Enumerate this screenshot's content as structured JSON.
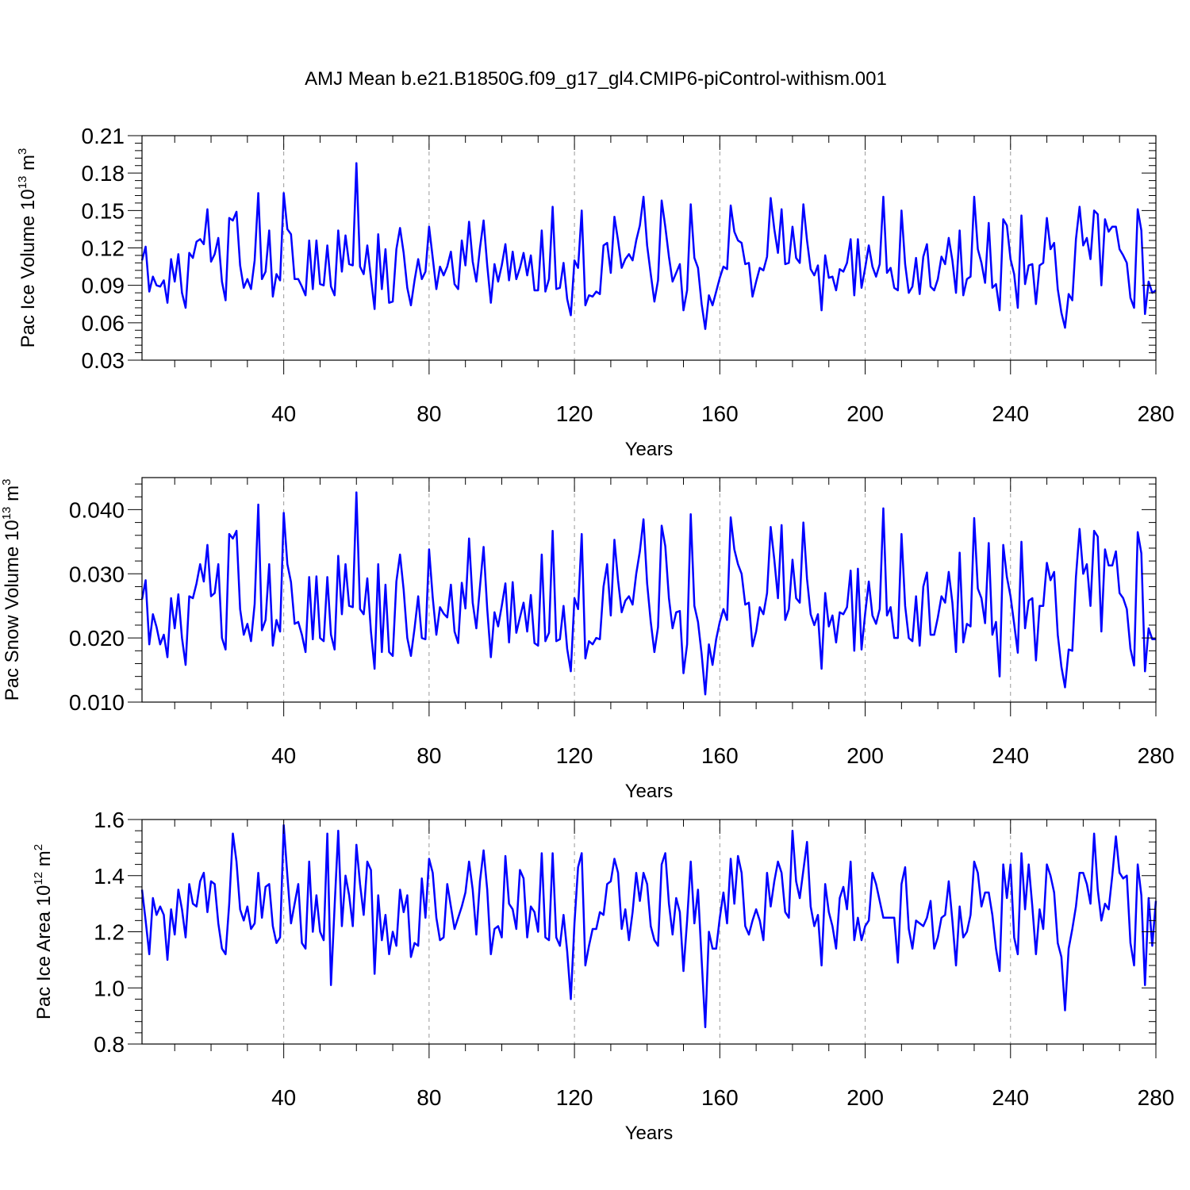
{
  "figure": {
    "title": "AMJ Mean b.e21.B1850G.f09_g17_gl4.CMIP6-piControl-withism.001",
    "line_color": "#0000ff",
    "grid_color": "#999999"
  },
  "chart_data": [
    {
      "type": "line",
      "title": "AMJ Mean b.e21.B1850G.f09_g17_gl4.CMIP6-piControl-withism.001",
      "xlabel": "Years",
      "ylabel": {
        "prefix": "Pac Ice Volume 10",
        "sup1": "13",
        "middle": " m",
        "sup2": "3"
      },
      "xlim": [
        1,
        280
      ],
      "ylim": [
        0.03,
        0.21
      ],
      "xticks": [
        40,
        80,
        120,
        160,
        200,
        240,
        280
      ],
      "xtick_labels": [
        "40",
        "80",
        "120",
        "160",
        "200",
        "240",
        "280"
      ],
      "yticks": [
        0.03,
        0.06,
        0.09,
        0.12,
        0.15,
        0.18,
        0.21
      ],
      "ytick_labels": [
        "0.03",
        "0.06",
        "0.09",
        "0.12",
        "0.15",
        "0.18",
        "0.21"
      ],
      "grid": "vertical dashed at major x ticks",
      "x_start": 1,
      "values": [
        0.11,
        0.121,
        0.085,
        0.097,
        0.09,
        0.089,
        0.094,
        0.076,
        0.111,
        0.093,
        0.115,
        0.084,
        0.072,
        0.116,
        0.112,
        0.125,
        0.127,
        0.123,
        0.151,
        0.109,
        0.115,
        0.128,
        0.093,
        0.078,
        0.144,
        0.142,
        0.149,
        0.106,
        0.088,
        0.095,
        0.087,
        0.11,
        0.164,
        0.095,
        0.101,
        0.134,
        0.081,
        0.099,
        0.094,
        0.164,
        0.135,
        0.131,
        0.095,
        0.095,
        0.089,
        0.082,
        0.126,
        0.087,
        0.126,
        0.091,
        0.09,
        0.122,
        0.089,
        0.082,
        0.134,
        0.101,
        0.13,
        0.107,
        0.106,
        0.188,
        0.105,
        0.099,
        0.122,
        0.096,
        0.071,
        0.131,
        0.087,
        0.119,
        0.076,
        0.077,
        0.119,
        0.136,
        0.116,
        0.088,
        0.074,
        0.094,
        0.111,
        0.095,
        0.101,
        0.137,
        0.112,
        0.087,
        0.105,
        0.098,
        0.105,
        0.117,
        0.091,
        0.087,
        0.126,
        0.106,
        0.141,
        0.109,
        0.093,
        0.12,
        0.142,
        0.106,
        0.076,
        0.107,
        0.093,
        0.106,
        0.123,
        0.094,
        0.117,
        0.095,
        0.104,
        0.116,
        0.098,
        0.114,
        0.086,
        0.086,
        0.134,
        0.085,
        0.095,
        0.153,
        0.087,
        0.088,
        0.108,
        0.079,
        0.066,
        0.11,
        0.104,
        0.15,
        0.074,
        0.082,
        0.081,
        0.085,
        0.083,
        0.122,
        0.124,
        0.1,
        0.145,
        0.126,
        0.104,
        0.111,
        0.115,
        0.11,
        0.126,
        0.138,
        0.161,
        0.122,
        0.099,
        0.077,
        0.094,
        0.158,
        0.137,
        0.113,
        0.093,
        0.1,
        0.107,
        0.07,
        0.086,
        0.155,
        0.112,
        0.104,
        0.075,
        0.055,
        0.082,
        0.074,
        0.085,
        0.096,
        0.105,
        0.103,
        0.154,
        0.133,
        0.126,
        0.124,
        0.107,
        0.108,
        0.081,
        0.093,
        0.104,
        0.102,
        0.113,
        0.16,
        0.135,
        0.116,
        0.151,
        0.107,
        0.108,
        0.137,
        0.112,
        0.108,
        0.155,
        0.126,
        0.103,
        0.098,
        0.106,
        0.07,
        0.114,
        0.096,
        0.097,
        0.086,
        0.103,
        0.101,
        0.108,
        0.127,
        0.082,
        0.127,
        0.088,
        0.104,
        0.122,
        0.105,
        0.097,
        0.107,
        0.161,
        0.1,
        0.104,
        0.088,
        0.086,
        0.15,
        0.107,
        0.084,
        0.089,
        0.112,
        0.083,
        0.113,
        0.123,
        0.089,
        0.086,
        0.095,
        0.113,
        0.107,
        0.128,
        0.11,
        0.084,
        0.134,
        0.082,
        0.095,
        0.097,
        0.161,
        0.119,
        0.108,
        0.092,
        0.14,
        0.088,
        0.091,
        0.07,
        0.143,
        0.138,
        0.111,
        0.099,
        0.072,
        0.146,
        0.091,
        0.106,
        0.107,
        0.075,
        0.106,
        0.108,
        0.144,
        0.119,
        0.124,
        0.087,
        0.068,
        0.056,
        0.083,
        0.078,
        0.127,
        0.153,
        0.122,
        0.128,
        0.111,
        0.15,
        0.147,
        0.09,
        0.143,
        0.133,
        0.137,
        0.137,
        0.119,
        0.114,
        0.108,
        0.08,
        0.072,
        0.151,
        0.134,
        0.067,
        0.093,
        0.084,
        0.086
      ]
    },
    {
      "type": "line",
      "xlabel": "Years",
      "ylabel": {
        "prefix": "Pac Snow Volume 10",
        "sup1": "13",
        "middle": " m",
        "sup2": "3"
      },
      "xlim": [
        1,
        280
      ],
      "ylim": [
        0.01,
        0.045
      ],
      "xticks": [
        40,
        80,
        120,
        160,
        200,
        240,
        280
      ],
      "xtick_labels": [
        "40",
        "80",
        "120",
        "160",
        "200",
        "240",
        "280"
      ],
      "yticks": [
        0.01,
        0.02,
        0.03,
        0.04
      ],
      "ytick_labels": [
        "0.010",
        "0.020",
        "0.030",
        "0.040"
      ],
      "grid": "vertical dashed at major x ticks",
      "x_start": 1,
      "values": [
        0.026,
        0.029,
        0.019,
        0.0237,
        0.0217,
        0.019,
        0.0205,
        0.017,
        0.0262,
        0.0215,
        0.0268,
        0.02,
        0.0158,
        0.0265,
        0.0262,
        0.0285,
        0.0315,
        0.0288,
        0.0345,
        0.0265,
        0.027,
        0.0315,
        0.02,
        0.0182,
        0.0362,
        0.0355,
        0.0367,
        0.0245,
        0.0205,
        0.0222,
        0.0195,
        0.0253,
        0.0408,
        0.0212,
        0.0228,
        0.0315,
        0.0188,
        0.0228,
        0.021,
        0.0395,
        0.0315,
        0.0287,
        0.0222,
        0.0225,
        0.0205,
        0.0178,
        0.0295,
        0.0198,
        0.0296,
        0.02,
        0.0195,
        0.0295,
        0.0205,
        0.0182,
        0.0328,
        0.0237,
        0.0315,
        0.025,
        0.0248,
        0.0427,
        0.0245,
        0.0237,
        0.0293,
        0.021,
        0.0152,
        0.0315,
        0.0178,
        0.0283,
        0.0178,
        0.0172,
        0.0288,
        0.033,
        0.0275,
        0.02,
        0.0172,
        0.0215,
        0.0265,
        0.02,
        0.0198,
        0.0338,
        0.0263,
        0.0205,
        0.0248,
        0.0238,
        0.0232,
        0.0283,
        0.021,
        0.0192,
        0.0286,
        0.0246,
        0.0355,
        0.0255,
        0.0215,
        0.028,
        0.0342,
        0.0245,
        0.017,
        0.024,
        0.0218,
        0.025,
        0.0285,
        0.0193,
        0.0287,
        0.0208,
        0.0232,
        0.0255,
        0.021,
        0.0267,
        0.0192,
        0.0188,
        0.033,
        0.0195,
        0.0208,
        0.0367,
        0.0195,
        0.0198,
        0.025,
        0.0183,
        0.0148,
        0.0262,
        0.0245,
        0.0362,
        0.0168,
        0.0195,
        0.019,
        0.02,
        0.0198,
        0.028,
        0.0315,
        0.0235,
        0.0353,
        0.029,
        0.024,
        0.0258,
        0.0265,
        0.0252,
        0.03,
        0.0335,
        0.0385,
        0.0285,
        0.0225,
        0.0178,
        0.0217,
        0.0375,
        0.0343,
        0.0262,
        0.0215,
        0.024,
        0.0242,
        0.0145,
        0.019,
        0.0393,
        0.025,
        0.0225,
        0.0175,
        0.0112,
        0.019,
        0.0158,
        0.0198,
        0.0225,
        0.0245,
        0.0228,
        0.0388,
        0.0338,
        0.0315,
        0.03,
        0.0252,
        0.0255,
        0.0187,
        0.021,
        0.0248,
        0.0237,
        0.027,
        0.0373,
        0.0322,
        0.0262,
        0.0376,
        0.0228,
        0.0245,
        0.0322,
        0.0262,
        0.0255,
        0.038,
        0.0292,
        0.0237,
        0.022,
        0.0237,
        0.0152,
        0.027,
        0.0218,
        0.0235,
        0.0193,
        0.024,
        0.0237,
        0.0248,
        0.0305,
        0.018,
        0.0308,
        0.0182,
        0.0238,
        0.0288,
        0.0235,
        0.0222,
        0.0245,
        0.0402,
        0.0235,
        0.0248,
        0.02,
        0.02,
        0.0362,
        0.025,
        0.02,
        0.0195,
        0.0265,
        0.0188,
        0.028,
        0.0302,
        0.0205,
        0.0205,
        0.0232,
        0.0265,
        0.0255,
        0.0303,
        0.0255,
        0.0178,
        0.0333,
        0.0193,
        0.0222,
        0.0218,
        0.0387,
        0.0277,
        0.0262,
        0.0223,
        0.0348,
        0.0205,
        0.0225,
        0.014,
        0.0345,
        0.0295,
        0.0265,
        0.0222,
        0.0177,
        0.035,
        0.0215,
        0.0258,
        0.0262,
        0.0165,
        0.025,
        0.025,
        0.0317,
        0.029,
        0.0303,
        0.0205,
        0.0155,
        0.0123,
        0.0182,
        0.018,
        0.0295,
        0.037,
        0.03,
        0.0315,
        0.025,
        0.0367,
        0.0358,
        0.021,
        0.0338,
        0.0313,
        0.0313,
        0.0335,
        0.027,
        0.0262,
        0.0245,
        0.0183,
        0.0157,
        0.0365,
        0.0332,
        0.0148,
        0.0215,
        0.0198,
        0.0198
      ]
    },
    {
      "type": "line",
      "xlabel": "Years",
      "ylabel": {
        "prefix": "Pac Ice Area 10",
        "sup1": "12",
        "middle": " m",
        "sup2": "2"
      },
      "xlim": [
        1,
        280
      ],
      "ylim": [
        0.8,
        1.6
      ],
      "xticks": [
        40,
        80,
        120,
        160,
        200,
        240,
        280
      ],
      "xtick_labels": [
        "40",
        "80",
        "120",
        "160",
        "200",
        "240",
        "280"
      ],
      "yticks": [
        0.8,
        1.0,
        1.2,
        1.4,
        1.6
      ],
      "ytick_labels": [
        "0.8",
        "1.0",
        "1.2",
        "1.4",
        "1.6"
      ],
      "grid": "vertical dashed at major x ticks",
      "x_start": 1,
      "values": [
        1.35,
        1.24,
        1.12,
        1.32,
        1.26,
        1.29,
        1.26,
        1.1,
        1.28,
        1.19,
        1.35,
        1.28,
        1.18,
        1.37,
        1.3,
        1.29,
        1.38,
        1.41,
        1.27,
        1.38,
        1.37,
        1.23,
        1.14,
        1.12,
        1.3,
        1.55,
        1.45,
        1.28,
        1.24,
        1.29,
        1.21,
        1.23,
        1.41,
        1.25,
        1.36,
        1.37,
        1.22,
        1.16,
        1.18,
        1.58,
        1.4,
        1.23,
        1.3,
        1.37,
        1.16,
        1.14,
        1.45,
        1.2,
        1.33,
        1.2,
        1.17,
        1.55,
        1.01,
        1.29,
        1.56,
        1.22,
        1.4,
        1.33,
        1.22,
        1.51,
        1.37,
        1.26,
        1.45,
        1.42,
        1.05,
        1.33,
        1.17,
        1.26,
        1.12,
        1.2,
        1.15,
        1.35,
        1.27,
        1.33,
        1.11,
        1.16,
        1.15,
        1.39,
        1.25,
        1.46,
        1.41,
        1.25,
        1.17,
        1.18,
        1.37,
        1.29,
        1.21,
        1.25,
        1.29,
        1.34,
        1.45,
        1.35,
        1.19,
        1.38,
        1.49,
        1.35,
        1.12,
        1.21,
        1.22,
        1.18,
        1.47,
        1.3,
        1.28,
        1.21,
        1.42,
        1.39,
        1.18,
        1.29,
        1.27,
        1.2,
        1.48,
        1.18,
        1.17,
        1.48,
        1.18,
        1.15,
        1.26,
        1.13,
        0.96,
        1.23,
        1.43,
        1.48,
        1.08,
        1.15,
        1.21,
        1.21,
        1.27,
        1.26,
        1.37,
        1.38,
        1.46,
        1.41,
        1.21,
        1.28,
        1.17,
        1.27,
        1.41,
        1.31,
        1.41,
        1.37,
        1.22,
        1.17,
        1.15,
        1.44,
        1.48,
        1.3,
        1.19,
        1.32,
        1.27,
        1.06,
        1.24,
        1.45,
        1.23,
        1.35,
        1.1,
        0.86,
        1.2,
        1.14,
        1.14,
        1.25,
        1.34,
        1.23,
        1.46,
        1.3,
        1.47,
        1.41,
        1.22,
        1.19,
        1.24,
        1.28,
        1.24,
        1.17,
        1.41,
        1.29,
        1.38,
        1.45,
        1.41,
        1.27,
        1.25,
        1.56,
        1.38,
        1.32,
        1.42,
        1.52,
        1.29,
        1.22,
        1.26,
        1.08,
        1.37,
        1.27,
        1.22,
        1.14,
        1.32,
        1.36,
        1.28,
        1.45,
        1.17,
        1.25,
        1.17,
        1.22,
        1.24,
        1.41,
        1.37,
        1.31,
        1.25,
        1.25,
        1.25,
        1.25,
        1.09,
        1.37,
        1.43,
        1.21,
        1.14,
        1.24,
        1.23,
        1.22,
        1.25,
        1.31,
        1.14,
        1.18,
        1.25,
        1.26,
        1.38,
        1.24,
        1.08,
        1.29,
        1.18,
        1.2,
        1.26,
        1.45,
        1.41,
        1.29,
        1.34,
        1.34,
        1.26,
        1.14,
        1.06,
        1.44,
        1.32,
        1.44,
        1.18,
        1.12,
        1.48,
        1.28,
        1.44,
        1.29,
        1.12,
        1.28,
        1.21,
        1.44,
        1.4,
        1.34,
        1.16,
        1.11,
        0.92,
        1.14,
        1.21,
        1.29,
        1.41,
        1.41,
        1.37,
        1.3,
        1.55,
        1.35,
        1.24,
        1.3,
        1.28,
        1.4,
        1.54,
        1.41,
        1.39,
        1.4,
        1.16,
        1.08,
        1.44,
        1.33,
        1.01,
        1.32,
        1.15,
        1.31
      ]
    }
  ]
}
